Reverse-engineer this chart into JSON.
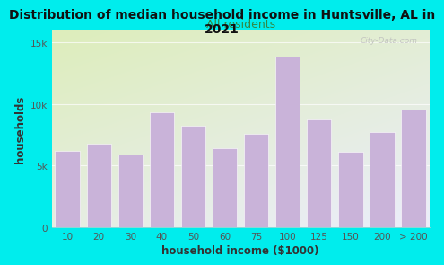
{
  "title": "Distribution of median household income in Huntsville, AL in\n2021",
  "subtitle": "All residents",
  "xlabel": "household income ($1000)",
  "ylabel": "households",
  "categories": [
    "10",
    "20",
    "30",
    "40",
    "50",
    "60",
    "75",
    "100",
    "125",
    "150",
    "200",
    "> 200"
  ],
  "values": [
    6200,
    6800,
    5900,
    9300,
    8200,
    6400,
    7600,
    13800,
    8700,
    6100,
    7700,
    9500
  ],
  "bar_color": "#c9b3d9",
  "bg_outer": "#00eded",
  "bg_plot_topleft": "#ddeebb",
  "bg_plot_right": "#e8ecf8",
  "bg_plot_bottom": "#e0ecf8",
  "ylim": [
    0,
    16000
  ],
  "yticks": [
    0,
    5000,
    10000,
    15000
  ],
  "ytick_labels": [
    "0",
    "5k",
    "10k",
    "15k"
  ],
  "title_fontsize": 10,
  "subtitle_fontsize": 9,
  "label_fontsize": 8.5,
  "tick_fontsize": 7.5,
  "watermark": "City-Data.com",
  "title_color": "#111111",
  "subtitle_color": "#338844",
  "axis_label_color": "#333333",
  "tick_color": "#555555"
}
